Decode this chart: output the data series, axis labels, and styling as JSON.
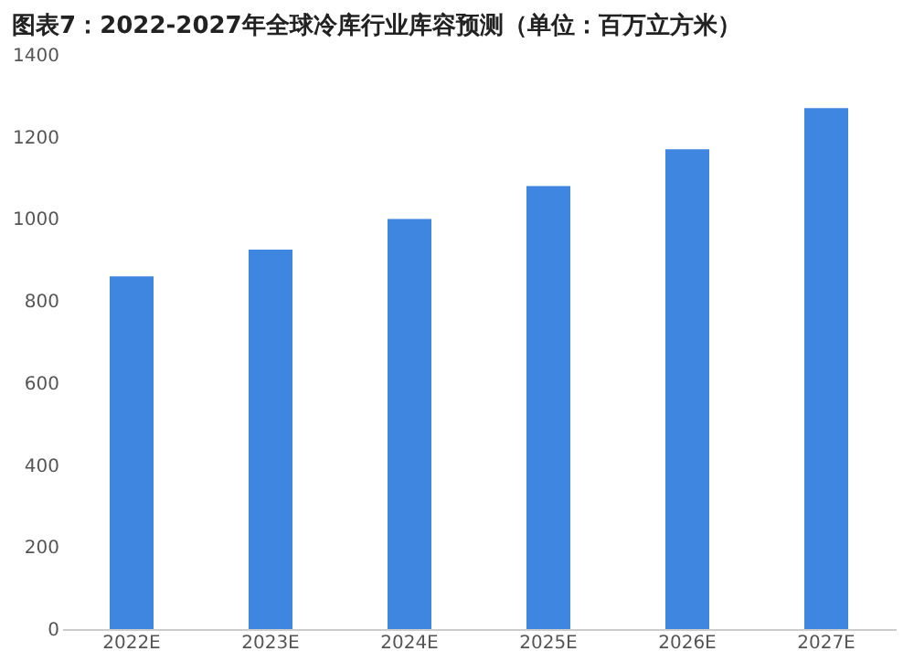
{
  "chart_data": {
    "type": "bar",
    "title": "图表7：2022-2027年全球冷库行业库容预测（单位：百万立方米）",
    "categories": [
      "2022E",
      "2023E",
      "2024E",
      "2025E",
      "2026E",
      "2027E"
    ],
    "values": [
      860,
      925,
      1000,
      1080,
      1170,
      1270
    ],
    "color": "#3f86e0",
    "ylim": [
      0,
      1400
    ],
    "yticks": [
      0,
      200,
      400,
      600,
      800,
      1000,
      1200,
      1400
    ],
    "grid": false
  }
}
